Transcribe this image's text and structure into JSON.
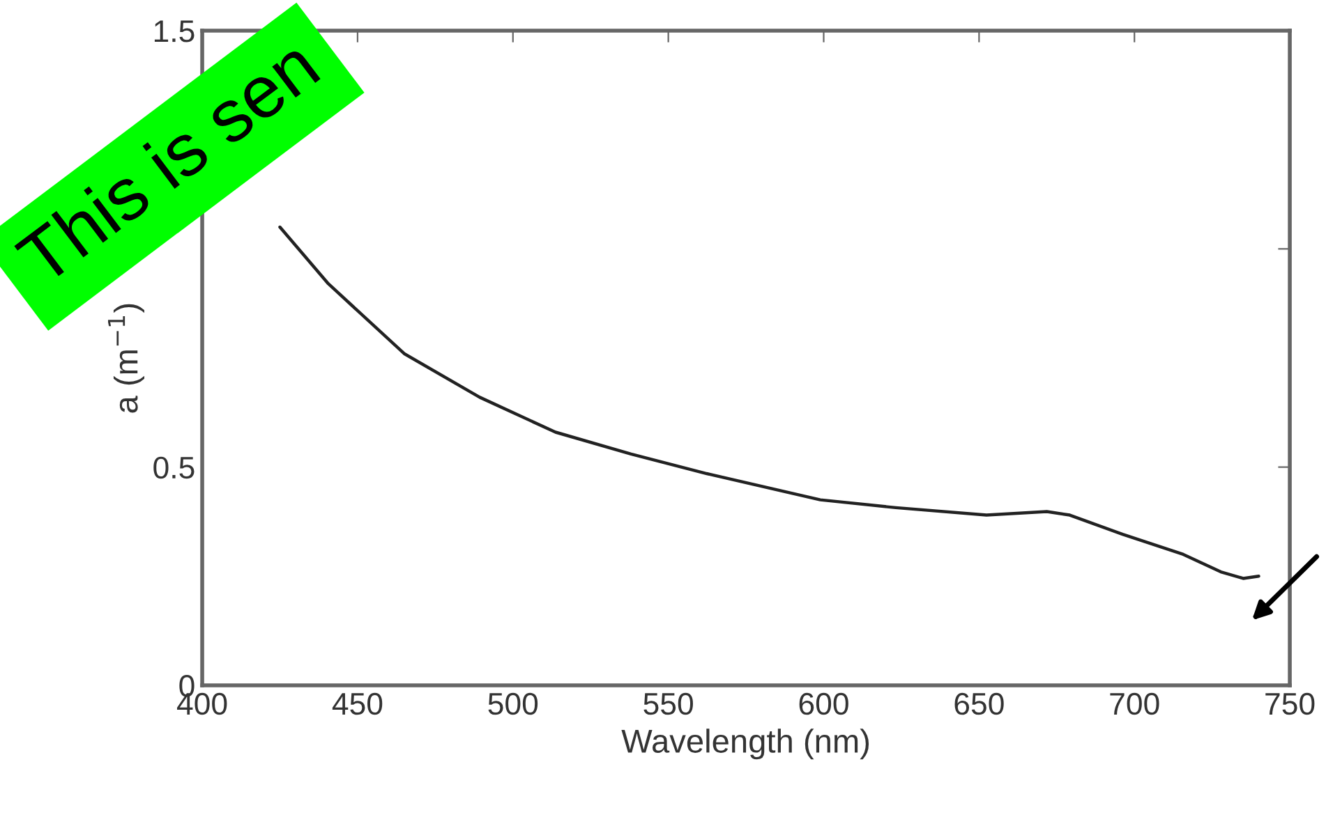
{
  "chart_data": {
    "type": "line",
    "xlabel": "Wavelength (nm)",
    "ylabel": "a (m$^{−1}$)",
    "annotations": [
      "This is sen"
    ],
    "series": [
      {
        "color": "#222222",
        "x": [
          425,
          440.6,
          465,
          489.3,
          513.7,
          538,
          562.4,
          598.9,
          623.2,
          652.4,
          671.8,
          679.2,
          696.2,
          715.7,
          727.8,
          735,
          740
        ],
        "values": [
          1.05,
          0.92,
          0.76,
          0.66,
          0.58,
          0.53,
          0.485,
          0.425,
          0.407,
          0.39,
          0.398,
          0.39,
          0.346,
          0.3,
          0.26,
          0.245,
          0.25
        ]
      }
    ],
    "xlim": [
      400,
      750
    ],
    "xticks": [
      400,
      450,
      500,
      550,
      600,
      650,
      700,
      750
    ],
    "ylim": [
      0,
      1.5
    ],
    "yticks": [
      0,
      0.5,
      {
        "value": 1,
        "label": null
      },
      1.5
    ],
    "grid": false,
    "legend": false,
    "line_style": "solid",
    "marker": "none"
  }
}
